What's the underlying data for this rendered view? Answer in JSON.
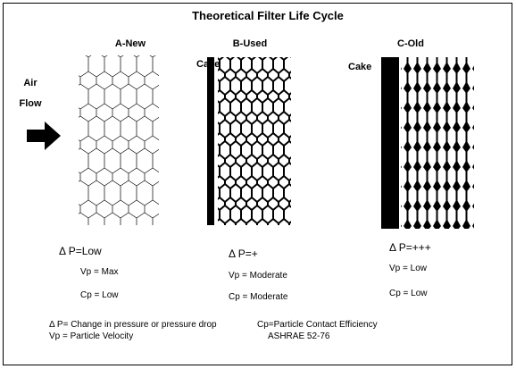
{
  "title": "Theoretical Filter Life Cycle",
  "air_flow": [
    "Air",
    "Flow"
  ],
  "panels": [
    {
      "label": "A-New",
      "delta_p": "Δ P=Low",
      "vp": "Vp = Max",
      "cp": "Cp = Low"
    },
    {
      "label": "B-Used",
      "cake": "Cake",
      "delta_p": "Δ P=+",
      "vp": "Vp = Moderate",
      "cp": "Cp = Moderate"
    },
    {
      "label": "C-Old",
      "cake": "Cake",
      "delta_p": "Δ P=+++",
      "vp": "Vp = Low",
      "cp": "Cp = Low"
    }
  ],
  "legend": {
    "delta_p": "Δ P= Change in pressure or pressure drop",
    "cp": "Cp=Particle Contact Efficiency",
    "vp": "Vp = Particle Velocity",
    "source": "ASHRAE 52-76"
  }
}
